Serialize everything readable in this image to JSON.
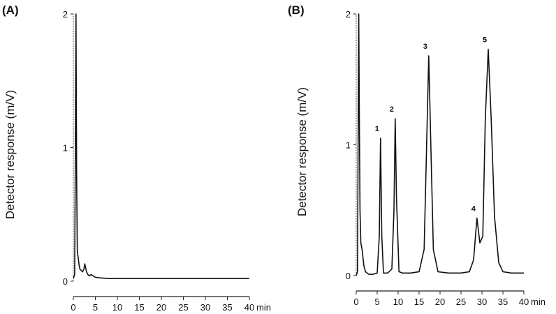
{
  "chart_data": [
    {
      "type": "line",
      "panel_label": "(A)",
      "ylabel": "Detector response (m/V)",
      "x_unit": "min",
      "xlim": [
        0,
        40
      ],
      "ylim": [
        0,
        2
      ],
      "x_ticks": [
        "0",
        "5",
        "10",
        "15",
        "20",
        "25",
        "30",
        "35",
        "40"
      ],
      "y_ticks": [
        "0",
        "1",
        "2"
      ],
      "series": [
        {
          "x": [
            0,
            0.3,
            0.45,
            0.6,
            0.75,
            0.9,
            1.1,
            1.3,
            1.5,
            1.8,
            2.1,
            2.4,
            2.6,
            2.8,
            3.0,
            3.3,
            3.6,
            4.0,
            4.5,
            5.0,
            6.0,
            8.0,
            10,
            15,
            20,
            25,
            30,
            35,
            40
          ],
          "y": [
            0.02,
            0.05,
            0.9,
            2.0,
            0.8,
            0.22,
            0.18,
            0.12,
            0.09,
            0.08,
            0.07,
            0.09,
            0.13,
            0.1,
            0.07,
            0.05,
            0.04,
            0.05,
            0.04,
            0.03,
            0.025,
            0.02,
            0.02,
            0.02,
            0.02,
            0.02,
            0.02,
            0.02,
            0.02
          ]
        }
      ]
    },
    {
      "type": "line",
      "panel_label": "(B)",
      "ylabel": "Detector response (m/V)",
      "x_unit": "min",
      "xlim": [
        0,
        40
      ],
      "ylim": [
        0,
        2
      ],
      "x_ticks": [
        "0",
        "5",
        "10",
        "15",
        "20",
        "25",
        "30",
        "35",
        "40"
      ],
      "y_ticks": [
        "0",
        "1",
        "2"
      ],
      "peaks": [
        {
          "label": "1",
          "x": 5.8,
          "y": 1.05
        },
        {
          "label": "2",
          "x": 9.3,
          "y": 1.2
        },
        {
          "label": "3",
          "x": 17.3,
          "y": 1.68
        },
        {
          "label": "4",
          "x": 28.8,
          "y": 0.44
        },
        {
          "label": "5",
          "x": 31.5,
          "y": 1.73
        }
      ],
      "series": [
        {
          "x": [
            0,
            0.3,
            0.45,
            0.6,
            0.75,
            0.9,
            1.1,
            1.4,
            1.8,
            2.2,
            3.0,
            4.0,
            5.0,
            5.5,
            5.8,
            6.1,
            6.5,
            7.5,
            8.5,
            9.0,
            9.3,
            9.6,
            10.2,
            11.0,
            13.0,
            15.0,
            16.2,
            16.8,
            17.3,
            17.8,
            18.4,
            19.5,
            22.0,
            25.0,
            27.0,
            28.0,
            28.8,
            29.5,
            30.2,
            30.8,
            31.5,
            32.2,
            33.0,
            34.0,
            35.0,
            37.0,
            40.0
          ],
          "y": [
            0.0,
            0.03,
            1.0,
            2.0,
            1.2,
            0.5,
            0.25,
            0.2,
            0.08,
            0.03,
            0.01,
            0.01,
            0.02,
            0.3,
            1.05,
            0.3,
            0.02,
            0.02,
            0.05,
            0.5,
            1.2,
            0.6,
            0.03,
            0.02,
            0.02,
            0.03,
            0.2,
            1.0,
            1.68,
            1.0,
            0.2,
            0.03,
            0.02,
            0.02,
            0.03,
            0.12,
            0.44,
            0.25,
            0.3,
            1.2,
            1.73,
            1.2,
            0.45,
            0.1,
            0.03,
            0.02,
            0.02
          ]
        }
      ]
    }
  ]
}
